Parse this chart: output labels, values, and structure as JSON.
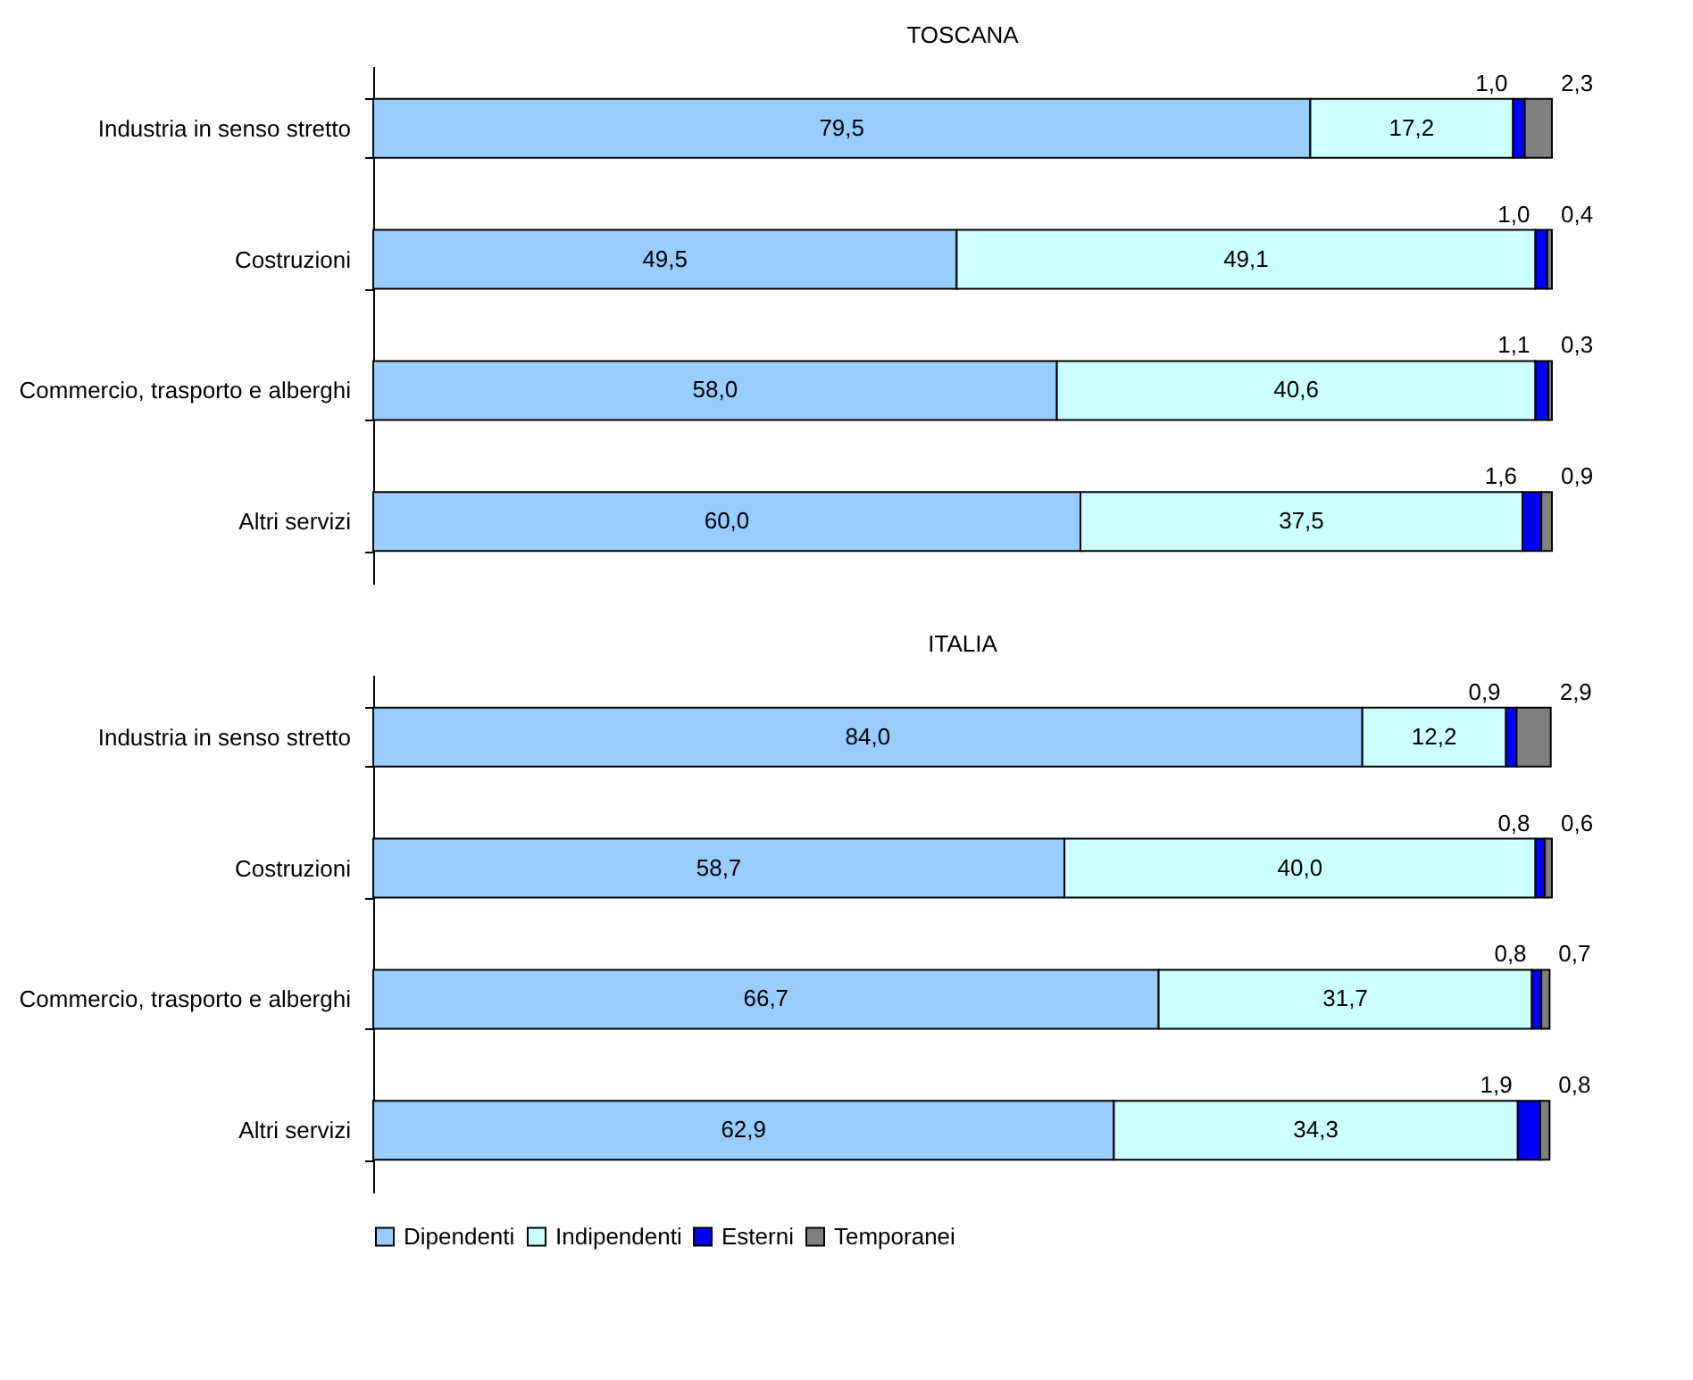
{
  "chart_data": [
    {
      "type": "bar",
      "title": "TOSCANA",
      "orientation": "horizontal",
      "stacked": true,
      "legend": false,
      "categories": [
        "Industria in senso stretto",
        "Costruzioni",
        "Commercio, trasporto e alberghi",
        "Altri servizi"
      ],
      "series": [
        {
          "color": "#99ccff",
          "values": [
            79.5,
            49.5,
            58.0,
            60.0
          ],
          "value_labels": [
            "79,5",
            "49,5",
            "58,0",
            "60,0"
          ]
        },
        {
          "color": "#ccffff",
          "values": [
            17.2,
            49.1,
            40.6,
            37.5
          ],
          "value_labels": [
            "17,2",
            "49,1",
            "40,6",
            "37,5"
          ]
        },
        {
          "color": "#0000ff",
          "values": [
            1.0,
            1.0,
            1.1,
            1.6
          ],
          "value_labels": [
            "1,0",
            "1,0",
            "1,1",
            "1,6"
          ]
        },
        {
          "color": "#808080",
          "values": [
            2.3,
            0.4,
            0.3,
            0.9
          ],
          "value_labels": [
            "2,3",
            "0,4",
            "0,3",
            "0,9"
          ]
        }
      ]
    },
    {
      "type": "bar",
      "title": "ITALIA",
      "orientation": "horizontal",
      "stacked": true,
      "legend": "bottom",
      "categories": [
        "Industria in senso stretto",
        "Costruzioni",
        "Commercio, trasporto e alberghi",
        "Altri servizi"
      ],
      "series": [
        {
          "name": "Dipendenti",
          "color": "#99ccff",
          "values": [
            84.0,
            58.7,
            66.7,
            62.9
          ],
          "value_labels": [
            "84,0",
            "58,7",
            "66,7",
            "62,9"
          ]
        },
        {
          "name": "Indipendenti",
          "color": "#ccffff",
          "values": [
            12.2,
            40.0,
            31.7,
            34.3
          ],
          "value_labels": [
            "12,2",
            "40,0",
            "31,7",
            "34,3"
          ]
        },
        {
          "name": "Esterni",
          "color": "#0000ff",
          "values": [
            0.9,
            0.8,
            0.8,
            1.9
          ],
          "value_labels": [
            "0,9",
            "0,8",
            "0,8",
            "1,9"
          ]
        },
        {
          "name": "Temporanei",
          "color": "#808080",
          "values": [
            2.9,
            0.6,
            0.7,
            0.8
          ],
          "value_labels": [
            "2,9",
            "0,6",
            "0,7",
            "0,8"
          ]
        }
      ]
    }
  ]
}
